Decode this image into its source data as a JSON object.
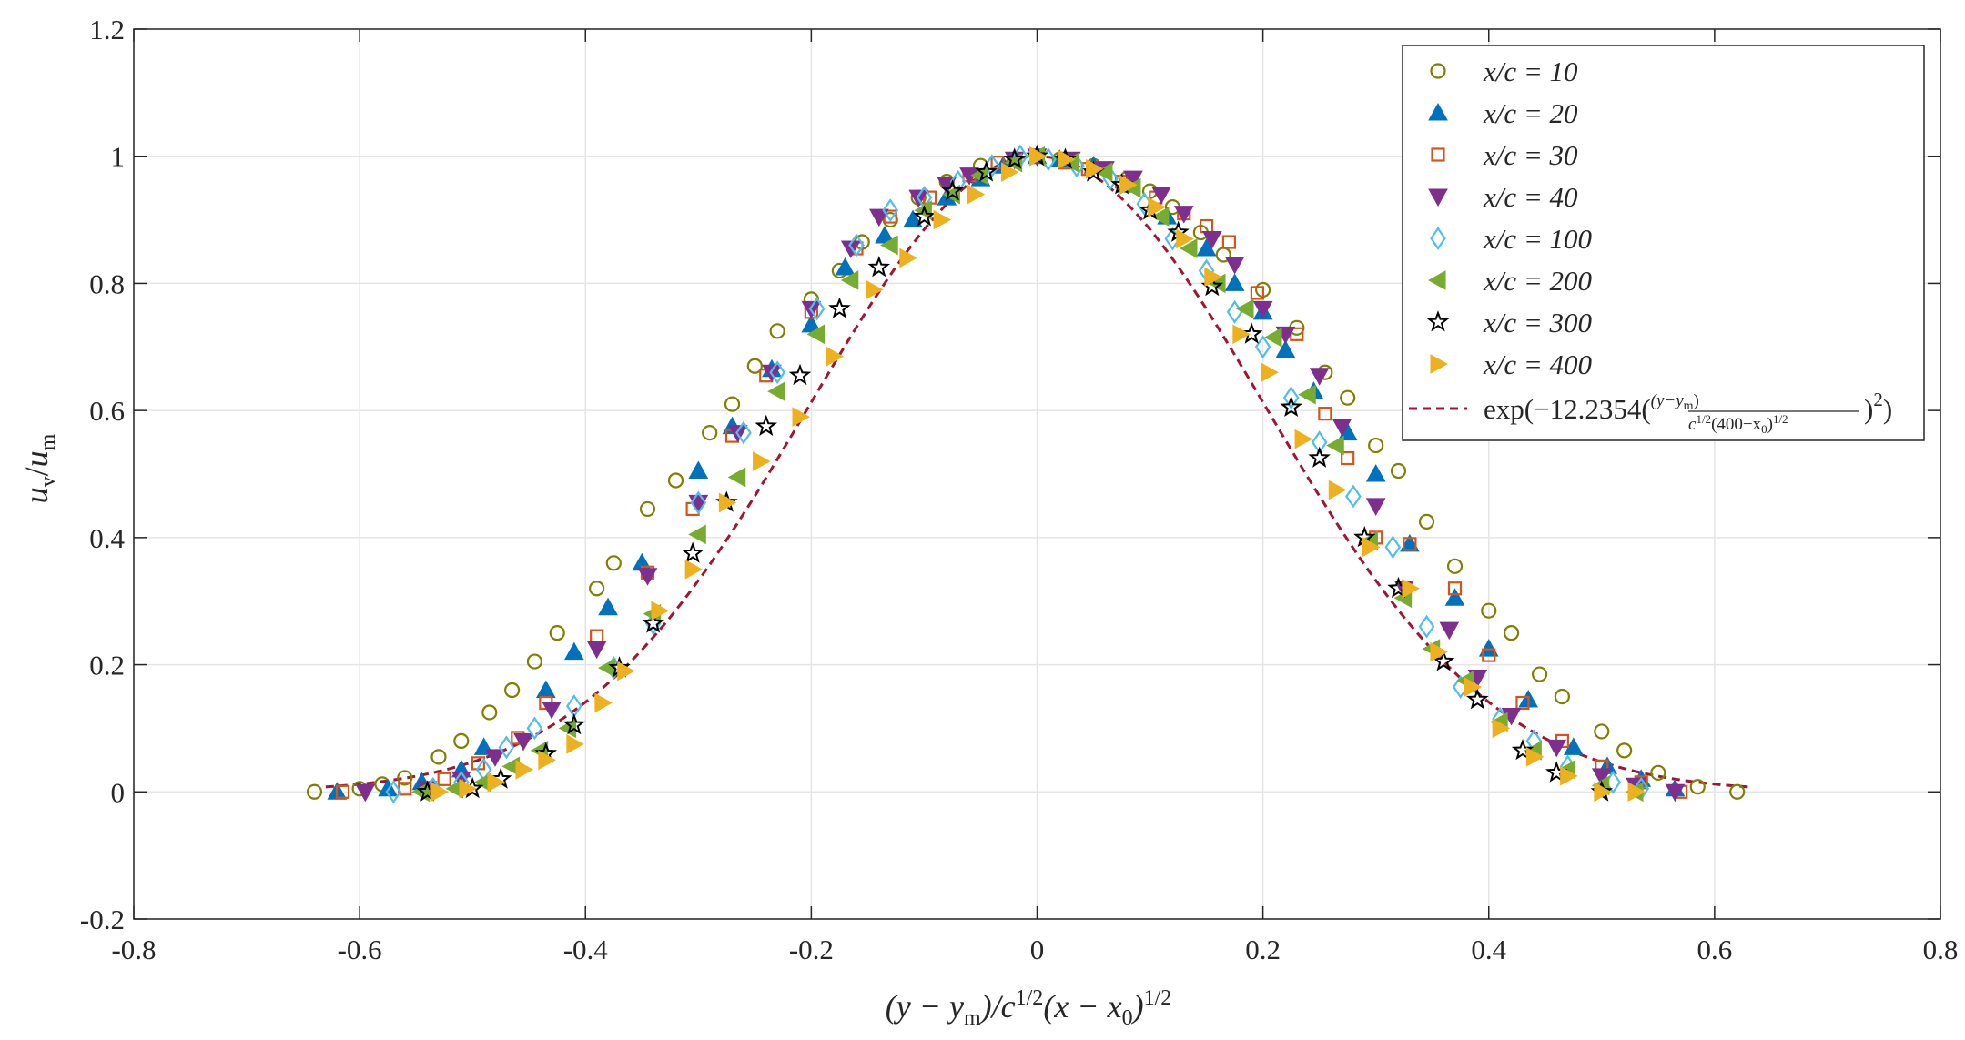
{
  "chart_data": {
    "type": "scatter",
    "title": "",
    "xlabel": "(y − yₘ)/c¹ᐟ²(x − x₀)¹ᐟ²",
    "ylabel": "uᵥ/uₘ",
    "xlim": [
      -0.8,
      0.8
    ],
    "ylim": [
      -0.2,
      1.2
    ],
    "grid": true,
    "legend_position": "top-right",
    "x_ticks": [
      "-0.8",
      "-0.6",
      "-0.4",
      "-0.2",
      "0",
      "0.2",
      "0.4",
      "0.6",
      "0.8"
    ],
    "y_ticks": [
      "-0.2",
      "0",
      "0.2",
      "0.4",
      "0.6",
      "0.8",
      "1",
      "1.2"
    ],
    "series": [
      {
        "name": "x/c = 10",
        "marker": "circle",
        "color": "#7f7f00",
        "fill": "none",
        "x": [
          -0.64,
          -0.6,
          -0.58,
          -0.56,
          -0.53,
          -0.51,
          -0.485,
          -0.465,
          -0.445,
          -0.425,
          -0.39,
          -0.375,
          -0.345,
          -0.32,
          -0.29,
          -0.27,
          -0.25,
          -0.23,
          -0.2,
          -0.175,
          -0.155,
          -0.13,
          -0.105,
          -0.08,
          -0.05,
          -0.02,
          0.0,
          0.02,
          0.05,
          0.08,
          0.1,
          0.12,
          0.145,
          0.165,
          0.2,
          0.23,
          0.255,
          0.275,
          0.3,
          0.32,
          0.345,
          0.37,
          0.4,
          0.42,
          0.445,
          0.465,
          0.5,
          0.52,
          0.55,
          0.585,
          0.62
        ],
        "y": [
          0.0,
          0.005,
          0.012,
          0.022,
          0.055,
          0.08,
          0.125,
          0.16,
          0.205,
          0.25,
          0.32,
          0.36,
          0.445,
          0.49,
          0.565,
          0.61,
          0.67,
          0.725,
          0.775,
          0.82,
          0.865,
          0.9,
          0.935,
          0.96,
          0.985,
          0.995,
          1.0,
          0.995,
          0.985,
          0.965,
          0.945,
          0.92,
          0.88,
          0.845,
          0.79,
          0.73,
          0.66,
          0.62,
          0.545,
          0.505,
          0.425,
          0.355,
          0.285,
          0.25,
          0.185,
          0.15,
          0.095,
          0.065,
          0.03,
          0.008,
          0.0
        ]
      },
      {
        "name": "x/c = 20",
        "marker": "triangle-up",
        "color": "#0072bd",
        "fill": "#0072bd",
        "x": [
          -0.62,
          -0.575,
          -0.545,
          -0.51,
          -0.49,
          -0.435,
          -0.41,
          -0.38,
          -0.35,
          -0.3,
          -0.27,
          -0.235,
          -0.2,
          -0.17,
          -0.135,
          -0.11,
          -0.08,
          -0.05,
          -0.03,
          0.0,
          0.02,
          0.05,
          0.08,
          0.115,
          0.15,
          0.175,
          0.2,
          0.22,
          0.245,
          0.275,
          0.3,
          0.33,
          0.37,
          0.4,
          0.435,
          0.475,
          0.505,
          0.535,
          0.565
        ],
        "y": [
          0.0,
          0.005,
          0.015,
          0.035,
          0.07,
          0.16,
          0.22,
          0.29,
          0.36,
          0.505,
          0.575,
          0.665,
          0.735,
          0.825,
          0.875,
          0.9,
          0.935,
          0.965,
          0.985,
          1.0,
          0.995,
          0.985,
          0.955,
          0.905,
          0.855,
          0.8,
          0.755,
          0.695,
          0.63,
          0.565,
          0.5,
          0.39,
          0.305,
          0.225,
          0.145,
          0.07,
          0.04,
          0.02,
          0.005
        ]
      },
      {
        "name": "x/c = 30",
        "marker": "square",
        "color": "#d95319",
        "fill": "none",
        "x": [
          -0.615,
          -0.56,
          -0.525,
          -0.495,
          -0.46,
          -0.435,
          -0.39,
          -0.345,
          -0.305,
          -0.27,
          -0.24,
          -0.2,
          -0.16,
          -0.13,
          -0.095,
          -0.06,
          -0.035,
          0.0,
          0.025,
          0.045,
          0.075,
          0.105,
          0.13,
          0.15,
          0.17,
          0.195,
          0.23,
          0.255,
          0.275,
          0.3,
          0.33,
          0.37,
          0.4,
          0.43,
          0.465,
          0.5,
          0.535,
          0.57
        ],
        "y": [
          0.0,
          0.005,
          0.02,
          0.045,
          0.085,
          0.14,
          0.245,
          0.345,
          0.445,
          0.56,
          0.655,
          0.755,
          0.855,
          0.905,
          0.935,
          0.97,
          0.99,
          1.0,
          0.99,
          0.98,
          0.96,
          0.935,
          0.91,
          0.89,
          0.865,
          0.785,
          0.72,
          0.595,
          0.525,
          0.4,
          0.39,
          0.32,
          0.215,
          0.14,
          0.08,
          0.04,
          0.015,
          0.0
        ]
      },
      {
        "name": "x/c = 40",
        "marker": "triangle-down",
        "color": "#7e2f8e",
        "fill": "#7e2f8e",
        "x": [
          -0.595,
          -0.54,
          -0.51,
          -0.48,
          -0.455,
          -0.43,
          -0.39,
          -0.345,
          -0.3,
          -0.265,
          -0.235,
          -0.2,
          -0.165,
          -0.14,
          -0.105,
          -0.08,
          -0.06,
          -0.02,
          0.0,
          0.03,
          0.06,
          0.085,
          0.11,
          0.13,
          0.155,
          0.175,
          0.2,
          0.22,
          0.25,
          0.27,
          0.3,
          0.325,
          0.365,
          0.39,
          0.42,
          0.46,
          0.5,
          0.53,
          0.565
        ],
        "y": [
          0.0,
          0.005,
          0.02,
          0.055,
          0.08,
          0.13,
          0.225,
          0.34,
          0.455,
          0.565,
          0.66,
          0.76,
          0.855,
          0.905,
          0.935,
          0.955,
          0.97,
          0.995,
          1.0,
          0.995,
          0.98,
          0.965,
          0.94,
          0.91,
          0.87,
          0.83,
          0.76,
          0.72,
          0.655,
          0.575,
          0.45,
          0.32,
          0.255,
          0.18,
          0.12,
          0.07,
          0.025,
          0.01,
          0.0
        ]
      },
      {
        "name": "x/c = 100",
        "marker": "diamond",
        "color": "#4dbeee",
        "fill": "none",
        "x": [
          -0.57,
          -0.535,
          -0.51,
          -0.49,
          -0.47,
          -0.445,
          -0.41,
          -0.375,
          -0.34,
          -0.3,
          -0.26,
          -0.23,
          -0.195,
          -0.16,
          -0.13,
          -0.1,
          -0.07,
          -0.04,
          -0.015,
          0.01,
          0.035,
          0.065,
          0.095,
          0.12,
          0.15,
          0.175,
          0.2,
          0.225,
          0.25,
          0.28,
          0.315,
          0.345,
          0.375,
          0.41,
          0.44,
          0.47,
          0.51,
          0.535
        ],
        "y": [
          0.0,
          0.005,
          0.015,
          0.035,
          0.07,
          0.1,
          0.135,
          0.195,
          0.265,
          0.455,
          0.565,
          0.66,
          0.76,
          0.86,
          0.915,
          0.935,
          0.96,
          0.985,
          1.0,
          0.995,
          0.985,
          0.965,
          0.925,
          0.87,
          0.82,
          0.755,
          0.7,
          0.62,
          0.55,
          0.465,
          0.385,
          0.26,
          0.165,
          0.115,
          0.08,
          0.04,
          0.015,
          0.005
        ]
      },
      {
        "name": "x/c = 200",
        "marker": "triangle-left",
        "color": "#77ac30",
        "fill": "#77ac30",
        "x": [
          -0.545,
          -0.515,
          -0.49,
          -0.465,
          -0.44,
          -0.415,
          -0.38,
          -0.34,
          -0.3,
          -0.265,
          -0.23,
          -0.195,
          -0.165,
          -0.13,
          -0.1,
          -0.075,
          -0.05,
          -0.02,
          0.0,
          0.03,
          0.06,
          0.085,
          0.11,
          0.135,
          0.16,
          0.185,
          0.21,
          0.24,
          0.265,
          0.295,
          0.325,
          0.35,
          0.38,
          0.41,
          0.44,
          0.47,
          0.5,
          0.53
        ],
        "y": [
          0.0,
          0.005,
          0.015,
          0.04,
          0.065,
          0.1,
          0.195,
          0.28,
          0.405,
          0.495,
          0.63,
          0.72,
          0.805,
          0.86,
          0.915,
          0.94,
          0.97,
          0.99,
          1.0,
          0.99,
          0.975,
          0.95,
          0.905,
          0.855,
          0.8,
          0.76,
          0.715,
          0.625,
          0.545,
          0.395,
          0.305,
          0.225,
          0.175,
          0.11,
          0.065,
          0.035,
          0.01,
          0.0
        ]
      },
      {
        "name": "x/c = 300",
        "marker": "star",
        "color": "#000000",
        "fill": "none",
        "x": [
          -0.54,
          -0.5,
          -0.475,
          -0.435,
          -0.41,
          -0.37,
          -0.34,
          -0.305,
          -0.275,
          -0.24,
          -0.21,
          -0.175,
          -0.14,
          -0.1,
          -0.075,
          -0.045,
          -0.02,
          0.0,
          0.025,
          0.05,
          0.075,
          0.1,
          0.125,
          0.155,
          0.19,
          0.225,
          0.25,
          0.29,
          0.32,
          0.36,
          0.39,
          0.43,
          0.46,
          0.5
        ],
        "y": [
          0.0,
          0.005,
          0.02,
          0.06,
          0.105,
          0.195,
          0.265,
          0.375,
          0.455,
          0.575,
          0.655,
          0.76,
          0.825,
          0.905,
          0.945,
          0.975,
          0.995,
          1.0,
          0.995,
          0.975,
          0.955,
          0.915,
          0.88,
          0.795,
          0.72,
          0.605,
          0.525,
          0.4,
          0.32,
          0.205,
          0.145,
          0.065,
          0.03,
          0.0
        ]
      },
      {
        "name": "x/c = 400",
        "marker": "triangle-right",
        "color": "#edb120",
        "fill": "#edb120",
        "x": [
          -0.53,
          -0.505,
          -0.48,
          -0.455,
          -0.435,
          -0.41,
          -0.385,
          -0.365,
          -0.335,
          -0.305,
          -0.275,
          -0.245,
          -0.21,
          -0.18,
          -0.145,
          -0.115,
          -0.085,
          -0.055,
          -0.025,
          0.0,
          0.025,
          0.05,
          0.08,
          0.105,
          0.13,
          0.155,
          0.18,
          0.205,
          0.235,
          0.265,
          0.295,
          0.33,
          0.355,
          0.385,
          0.41,
          0.44,
          0.47,
          0.5,
          0.53
        ],
        "y": [
          0.0,
          0.005,
          0.015,
          0.035,
          0.05,
          0.075,
          0.14,
          0.19,
          0.285,
          0.35,
          0.455,
          0.52,
          0.59,
          0.685,
          0.79,
          0.84,
          0.9,
          0.94,
          0.975,
          1.0,
          0.995,
          0.98,
          0.955,
          0.92,
          0.87,
          0.81,
          0.72,
          0.66,
          0.555,
          0.475,
          0.385,
          0.32,
          0.22,
          0.165,
          0.1,
          0.055,
          0.025,
          0.0,
          0.0
        ]
      }
    ],
    "fit_curve": {
      "name": "exp(−12.2354(·)²)",
      "style": "dashed",
      "color": "#a2142f",
      "coefficient": 12.2354,
      "x_range": [
        -0.63,
        0.63
      ]
    },
    "legend_labels": [
      "x/c = 10",
      "x/c = 20",
      "x/c = 30",
      "x/c = 40",
      "x/c = 100",
      "x/c = 200",
      "x/c = 300",
      "x/c = 400"
    ],
    "fit_label": {
      "prefix": "exp(−12.2354(",
      "frac_num": "(y−y",
      "frac_num_sub": "m",
      "frac_num_end": ")",
      "frac_den": "c",
      "frac_den_sup": "1/2",
      "frac_den_mid": "(400−x",
      "frac_den_sub": "0",
      "frac_den_end": ")",
      "frac_den_sup2": "1/2",
      "suffix": ")",
      "suffix_sup": "2",
      "close": ")"
    },
    "ylabel_parts": {
      "u": "u",
      "sub_v": "v",
      "slash": "/",
      "u2": "u",
      "sub_m": "m"
    },
    "xlabel_parts": {
      "open": "(y − y",
      "sub_m": "m",
      "mid": ")/c",
      "sup1": "1/2",
      "mid2": "(x − x",
      "sub_0": "0",
      "close": ")",
      "sup2": "1/2"
    }
  }
}
